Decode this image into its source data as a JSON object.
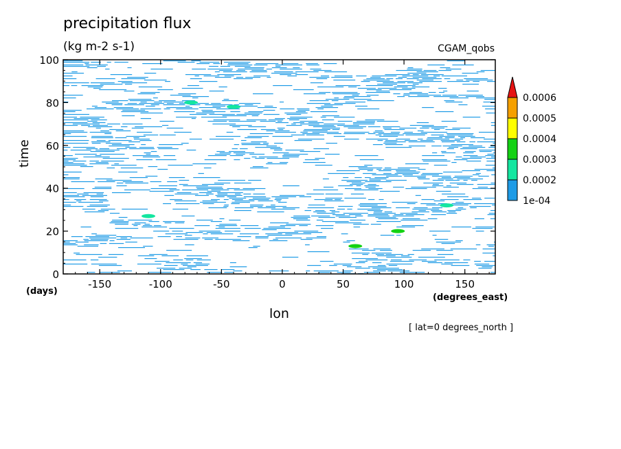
{
  "chart_data": {
    "type": "heatmap",
    "title": "precipitation flux",
    "units": "(kg m-2 s-1)",
    "source": "CGAM_qobs",
    "xlabel": "lon",
    "xunits": "(degrees_east)",
    "ylabel": "time",
    "yunits": "(days)",
    "note": "[ lat=0 degrees_north ]",
    "xlim": [
      -180,
      175
    ],
    "ylim": [
      0,
      100
    ],
    "xticks": [
      "-150",
      "-100",
      "-50",
      "0",
      "50",
      "100",
      "150"
    ],
    "xtick_values": [
      -150,
      -100,
      -50,
      0,
      50,
      100,
      150
    ],
    "yticks": [
      "0",
      "20",
      "40",
      "60",
      "80",
      "100"
    ],
    "ytick_values": [
      0,
      20,
      40,
      60,
      80,
      100
    ],
    "colorbar": {
      "labels": [
        "1e-04",
        "0.0002",
        "0.0003",
        "0.0004",
        "0.0005",
        "0.0006"
      ],
      "levels": [
        0.0001,
        0.0002,
        0.0003,
        0.0004,
        0.0005,
        0.0006
      ],
      "colors": [
        "#1e9be6",
        "#14e6a0",
        "#14d214",
        "#ffff00",
        "#f5a000",
        "#e61414"
      ],
      "extend": "max"
    },
    "hotspots": [
      {
        "lon": 60,
        "time": 13,
        "value": 0.00032
      },
      {
        "lon": 95,
        "time": 20,
        "value": 0.00031
      },
      {
        "lon": 135,
        "time": 32,
        "value": 0.00025
      },
      {
        "lon": -40,
        "time": 78,
        "value": 0.00026
      },
      {
        "lon": -75,
        "time": 80,
        "value": 0.00024
      },
      {
        "lon": -110,
        "time": 27,
        "value": 0.00023
      }
    ]
  }
}
